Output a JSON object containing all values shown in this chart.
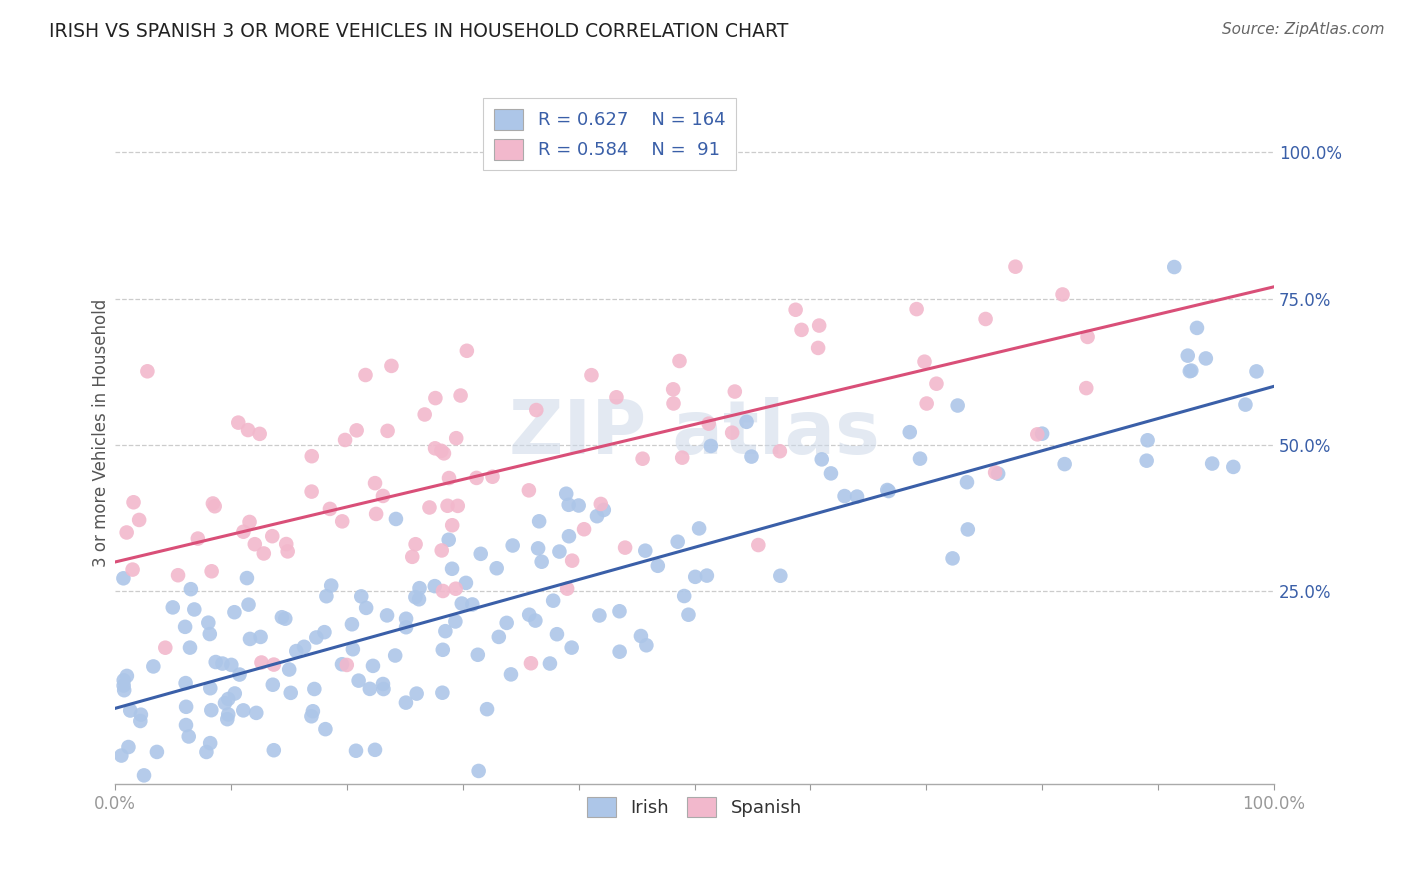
{
  "title": "IRISH VS SPANISH 3 OR MORE VEHICLES IN HOUSEHOLD CORRELATION CHART",
  "source": "Source: ZipAtlas.com",
  "ylabel": "3 or more Vehicles in Household",
  "xlim": [
    0.0,
    1.0
  ],
  "ylim": [
    -0.08,
    1.12
  ],
  "x_ticks": [
    0.0,
    0.1,
    0.2,
    0.3,
    0.4,
    0.5,
    0.6,
    0.7,
    0.8,
    0.9,
    1.0
  ],
  "x_tick_labels": [
    "0.0%",
    "",
    "",
    "",
    "",
    "",
    "",
    "",
    "",
    "",
    "100.0%"
  ],
  "y_ticks": [
    0.25,
    0.5,
    0.75,
    1.0
  ],
  "y_tick_labels": [
    "25.0%",
    "50.0%",
    "75.0%",
    "100.0%"
  ],
  "irish_color": "#adc6e8",
  "spanish_color": "#f2b8cc",
  "irish_line_color": "#3a5fa8",
  "spanish_line_color": "#d94f78",
  "irish_R": 0.627,
  "irish_N": 164,
  "spanish_R": 0.584,
  "spanish_N": 91,
  "irish_slope": 0.55,
  "irish_intercept": 0.05,
  "spanish_slope": 0.47,
  "spanish_intercept": 0.3,
  "watermark": "ZIPAtlas",
  "background_color": "#ffffff",
  "grid_color": "#cccccc"
}
